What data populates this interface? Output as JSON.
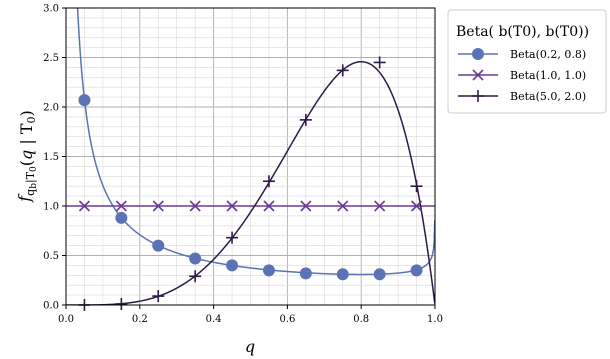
{
  "chart_data": {
    "type": "line",
    "xlabel": "q",
    "ylabel": "f_{q_b|T_0}(q | T_0)",
    "xlim": [
      0.0,
      1.0
    ],
    "ylim": [
      0.0,
      3.0
    ],
    "xticks": [
      "0.0",
      "0.2",
      "0.4",
      "0.6",
      "0.8",
      "1.0"
    ],
    "yticks": [
      "0.0",
      "0.5",
      "1.0",
      "1.5",
      "2.0",
      "2.5",
      "3.0"
    ],
    "grid": "major and minor",
    "legend": {
      "title": "Beta(  b(T0),  b(T0))",
      "placement": "outside-right-top",
      "entries": [
        "Beta(0.2, 0.8)",
        "Beta(1.0, 1.0)",
        "Beta(5.0, 2.0)"
      ]
    },
    "marker_x": [
      0.05,
      0.15,
      0.25,
      0.35,
      0.45,
      0.55,
      0.65,
      0.75,
      0.85,
      0.95
    ],
    "series": [
      {
        "name": "Beta(0.2, 0.8)",
        "alpha": 0.2,
        "beta": 0.8,
        "color": "#5b73b5",
        "marker": "circle",
        "marker_y": [
          2.07,
          0.88,
          0.6,
          0.47,
          0.4,
          0.35,
          0.32,
          0.31,
          0.31,
          0.35
        ]
      },
      {
        "name": "Beta(1.0, 1.0)",
        "alpha": 1.0,
        "beta": 1.0,
        "color": "#6a3a96",
        "marker": "x",
        "marker_y": [
          1.0,
          1.0,
          1.0,
          1.0,
          1.0,
          1.0,
          1.0,
          1.0,
          1.0,
          1.0
        ]
      },
      {
        "name": "Beta(5.0, 2.0)",
        "alpha": 5.0,
        "beta": 2.0,
        "color": "#2e1a47",
        "marker": "plus",
        "marker_y": [
          0.0,
          0.01,
          0.09,
          0.29,
          0.68,
          1.25,
          1.87,
          2.37,
          2.45,
          1.2
        ]
      }
    ]
  }
}
